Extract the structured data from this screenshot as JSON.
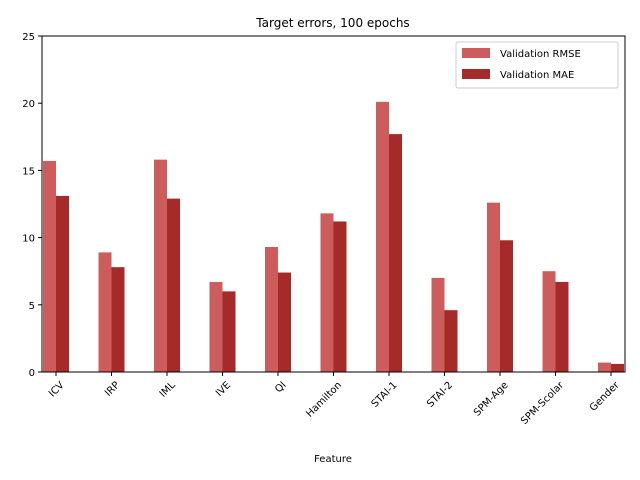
{
  "chart_data": {
    "type": "bar",
    "title": "Target errors, 100 epochs",
    "xlabel": "Feature",
    "ylabel": "",
    "ylim": [
      0,
      25
    ],
    "yticks": [
      0,
      5,
      10,
      15,
      20,
      25
    ],
    "categories": [
      "ICV",
      "IRP",
      "IML",
      "IVE",
      "QI",
      "Hamilton",
      "STAI-1",
      "STAI-2",
      "SPM-Age",
      "SPM-Scolar",
      "Gender"
    ],
    "series": [
      {
        "name": "Validation RMSE",
        "color": "#cd5c5c",
        "values": [
          15.7,
          8.9,
          15.8,
          6.7,
          9.3,
          11.8,
          20.1,
          7.0,
          12.6,
          7.5,
          0.7
        ]
      },
      {
        "name": "Validation MAE",
        "color": "#a52a2a",
        "values": [
          13.1,
          7.8,
          12.9,
          6.0,
          7.4,
          11.2,
          17.7,
          4.6,
          9.8,
          6.7,
          0.6
        ]
      }
    ],
    "grid": false,
    "legend_position": "top-right"
  }
}
